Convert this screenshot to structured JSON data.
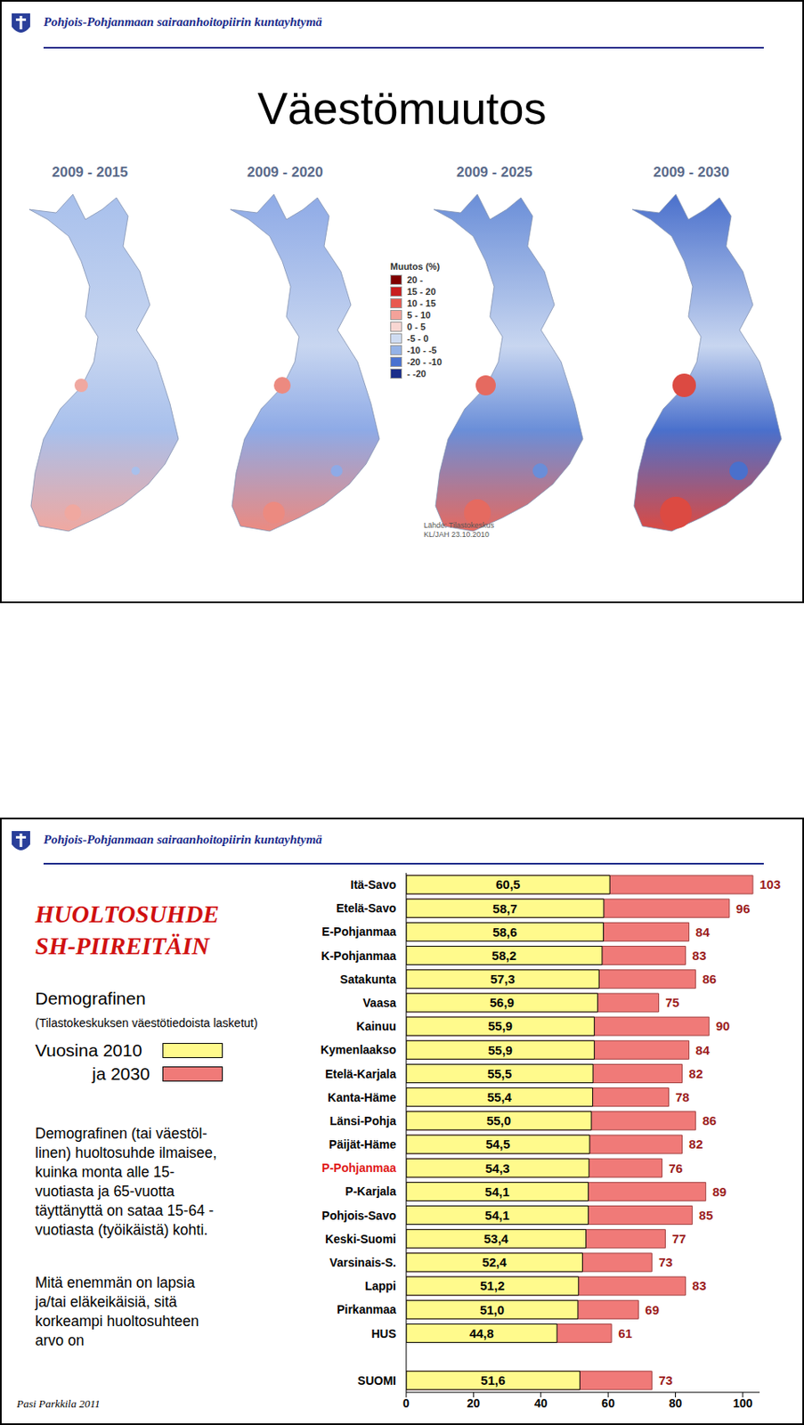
{
  "header": "Pohjois-Pohjanmaan sairaanhoitopiirin kuntayhtymä",
  "slide1": {
    "title": "Väestömuutos",
    "map_titles": [
      "2009 - 2015",
      "2009 - 2020",
      "2009 - 2025",
      "2009 - 2030"
    ],
    "legend_title": "Muutos (%)",
    "legend": [
      {
        "label": "20 -",
        "color": "#7f0000"
      },
      {
        "label": "15 - 20",
        "color": "#c81e1e"
      },
      {
        "label": "10 - 15",
        "color": "#e85a50"
      },
      {
        "label": "5 - 10",
        "color": "#f3a29a"
      },
      {
        "label": "0 - 5",
        "color": "#f8d6d2"
      },
      {
        "label": "-5 - 0",
        "color": "#cfdcf2"
      },
      {
        "label": "-10 - -5",
        "color": "#94b2e6"
      },
      {
        "label": "-20 - -10",
        "color": "#4a72d0"
      },
      {
        "label": "- -20",
        "color": "#1a2d8a"
      }
    ],
    "source": [
      "Lähde: Tilastokeskus",
      "KL/JAH 23.10.2010"
    ]
  },
  "slide2": {
    "title": [
      "HUOLTOSUHDE",
      "SH-PIIREITÄIN"
    ],
    "subtitle": "Demografinen",
    "note": "(Tilastokeskuksen väestötiedoista lasketut)",
    "paragraphs": [
      [
        "Demografinen (tai väestöl-",
        "linen) huoltosuhde ilmaisee,",
        "kuinka monta alle 15-",
        "vuotiasta ja 65-vuotta",
        "täyttänyttä on sataa 15-64 -",
        "vuotiasta (työikäistä) kohti."
      ],
      [
        "Mitä enemmän on lapsia",
        "ja/tai eläkeikäisiä, sitä",
        "korkeampi huoltosuhteen",
        "arvo on"
      ]
    ],
    "author": "Pasi Parkkila 2011"
  },
  "chart_data": {
    "type": "bar",
    "orientation": "horizontal",
    "categories": [
      "Itä-Savo",
      "Etelä-Savo",
      "E-Pohjanmaa",
      "K-Pohjanmaa",
      "Satakunta",
      "Vaasa",
      "Kainuu",
      "Kymenlaakso",
      "Etelä-Karjala",
      "Kanta-Häme",
      "Länsi-Pohja",
      "Päijät-Häme",
      "P-Pohjanmaa",
      "P-Karjala",
      "Pohjois-Savo",
      "Keski-Suomi",
      "Varsinais-S.",
      "Lappi",
      "Pirkanmaa",
      "HUS",
      null,
      "SUOMI"
    ],
    "series": [
      {
        "name": "Vuosina 2010",
        "color": "#fffa8c",
        "values": [
          60.5,
          58.7,
          58.6,
          58.2,
          57.3,
          56.9,
          55.9,
          55.9,
          55.5,
          55.4,
          55.0,
          54.5,
          54.3,
          54.1,
          54.1,
          53.4,
          52.4,
          51.2,
          51.0,
          44.8,
          null,
          51.6
        ],
        "value_labels": [
          "60,5",
          "58,7",
          "58,6",
          "58,2",
          "57,3",
          "56,9",
          "55,9",
          "55,9",
          "55,5",
          "55,4",
          "55,0",
          "54,5",
          "54,3",
          "54,1",
          "54,1",
          "53,4",
          "52,4",
          "51,2",
          "51,0",
          "44,8",
          null,
          "51,6"
        ]
      },
      {
        "name": "ja 2030",
        "color": "#f07a78",
        "values": [
          103,
          96,
          84,
          83,
          86,
          75,
          90,
          84,
          82,
          78,
          86,
          82,
          76,
          89,
          85,
          77,
          73,
          83,
          69,
          61,
          null,
          73
        ]
      }
    ],
    "xlim": [
      0,
      105
    ],
    "xticks": [
      0,
      20,
      40,
      60,
      80,
      100
    ],
    "data_labels": true,
    "grid": false
  }
}
